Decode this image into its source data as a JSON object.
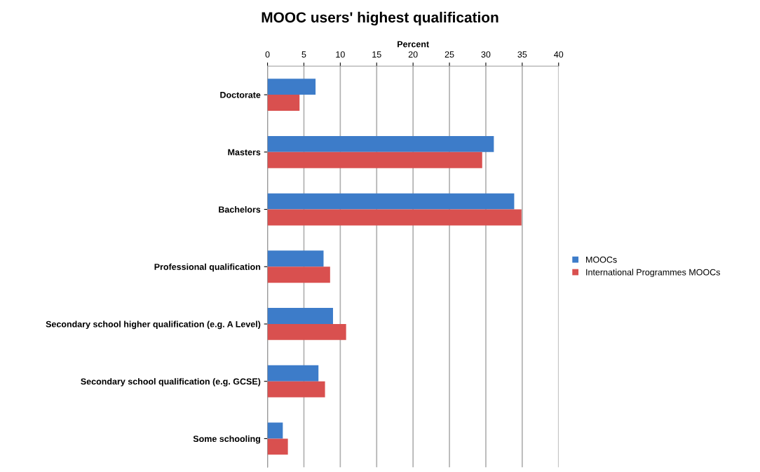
{
  "chart_data": {
    "type": "bar",
    "orientation": "horizontal",
    "title": "MOOC users' highest qualification",
    "xlabel": "Percent",
    "categories": [
      "Doctorate",
      "Masters",
      "Bachelors",
      "Professional qualification",
      "Secondary school higher qualification (e.g. A Level)",
      "Secondary school qualification (e.g. GCSE)",
      "Some schooling"
    ],
    "series": [
      {
        "name": "MOOCs",
        "color": "#3d7cc9",
        "values": [
          6.6,
          31.1,
          33.9,
          7.7,
          9.0,
          7.0,
          2.1
        ]
      },
      {
        "name": "International Programmes MOOCs",
        "color": "#d9504f",
        "values": [
          4.4,
          29.5,
          34.9,
          8.6,
          10.8,
          7.9,
          2.8
        ]
      }
    ],
    "xlim": [
      0,
      40
    ],
    "xticks": [
      0,
      5,
      10,
      15,
      20,
      25,
      30,
      35,
      40
    ],
    "grid": "x",
    "legend": "right"
  }
}
